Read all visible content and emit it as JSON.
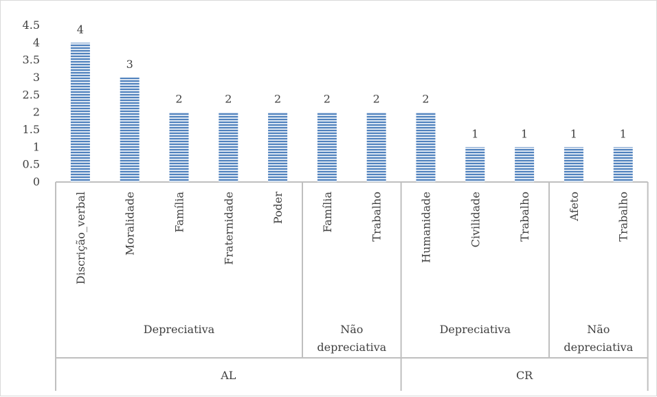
{
  "chart_data": {
    "type": "bar",
    "title": "",
    "xlabel": "",
    "ylabel": "",
    "ylim": [
      0,
      4.5
    ],
    "yticks": [
      "0",
      "0.5",
      "1",
      "1.5",
      "2",
      "2.5",
      "3",
      "3.5",
      "4",
      "4.5"
    ],
    "grid": false,
    "legend": "none",
    "bar_color": "#4f81bd",
    "bar_stripe_color": "#dce6f2",
    "categories": [
      "Discrição_verbal",
      "Moralidade",
      "Família",
      "Fraternidade",
      "Poder",
      "Família",
      "Trabalho",
      "Humanidade",
      "Civilidade",
      "Trabalho",
      "Afeto",
      "Trabalho"
    ],
    "values": [
      4,
      3,
      2,
      2,
      2,
      2,
      2,
      2,
      1,
      1,
      1,
      1
    ],
    "data_labels": [
      "4",
      "3",
      "2",
      "2",
      "2",
      "2",
      "2",
      "2",
      "1",
      "1",
      "1",
      "1"
    ],
    "level2_groups": [
      {
        "label": "Depreciativa",
        "span": 5
      },
      {
        "label": "Não depreciativa",
        "span": 2
      },
      {
        "label": "Depreciativa",
        "span": 3
      },
      {
        "label": "Não depreciativa",
        "span": 2
      }
    ],
    "level1_groups": [
      {
        "label": "AL",
        "span": 7
      },
      {
        "label": "CR",
        "span": 5
      }
    ]
  }
}
